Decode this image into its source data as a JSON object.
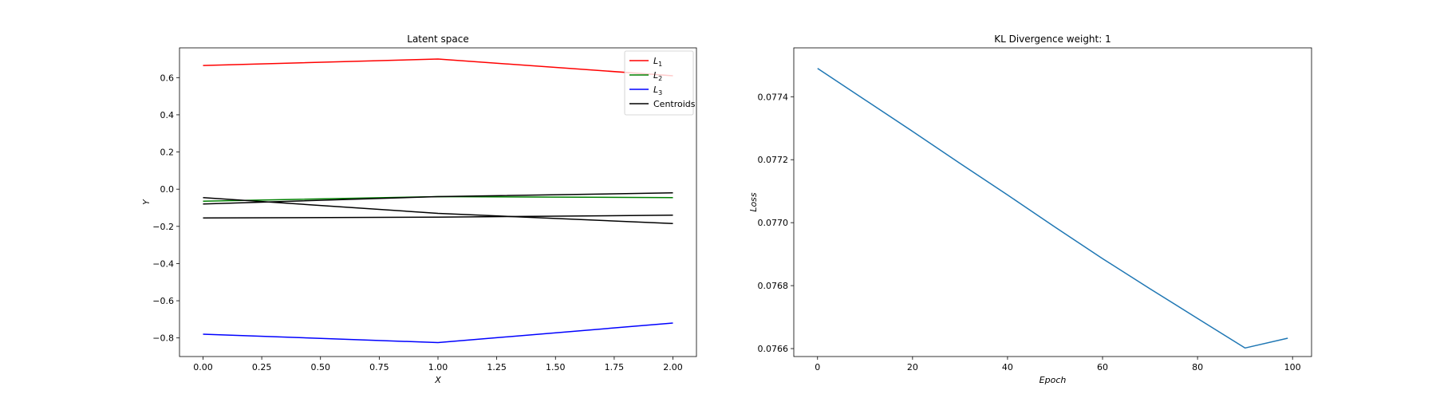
{
  "chart_data": [
    {
      "type": "line",
      "title": "Latent space",
      "xlabel": "X",
      "ylabel": "Y",
      "xlim": [
        -0.1,
        2.1
      ],
      "ylim": [
        -0.9,
        0.76
      ],
      "x_ticks": [
        0.0,
        0.25,
        0.5,
        0.75,
        1.0,
        1.25,
        1.5,
        1.75,
        2.0
      ],
      "x_tick_labels": [
        "0.00",
        "0.25",
        "0.50",
        "0.75",
        "1.00",
        "1.25",
        "1.50",
        "1.75",
        "2.00"
      ],
      "y_ticks": [
        -0.8,
        -0.6,
        -0.4,
        -0.2,
        0.0,
        0.2,
        0.4,
        0.6
      ],
      "y_tick_labels": [
        "−0.8",
        "−0.6",
        "−0.4",
        "−0.2",
        "0.0",
        "0.2",
        "0.4",
        "0.6"
      ],
      "grid": false,
      "legend_position": "top-right",
      "legend": [
        {
          "base": "L",
          "sub": "1",
          "color": "#ff0000"
        },
        {
          "base": "L",
          "sub": "2",
          "color": "#008000"
        },
        {
          "base": "L",
          "sub": "3",
          "color": "#0000ff"
        },
        {
          "base": "Centroids",
          "sub": "",
          "color": "#000000"
        }
      ],
      "series": [
        {
          "name": "L1",
          "color": "#ff0000",
          "x": [
            0,
            1,
            2
          ],
          "y": [
            0.665,
            0.7,
            0.61
          ]
        },
        {
          "name": "L2",
          "color": "#008000",
          "x": [
            0,
            1,
            2
          ],
          "y": [
            -0.065,
            -0.04,
            -0.045
          ]
        },
        {
          "name": "L3",
          "color": "#0000ff",
          "x": [
            0,
            1,
            2
          ],
          "y": [
            -0.78,
            -0.825,
            -0.72
          ]
        },
        {
          "name": "Centroids",
          "color": "#000000",
          "x": [
            0,
            1,
            2
          ],
          "y": [
            -0.045,
            -0.13,
            -0.185
          ]
        },
        {
          "color": "#000000",
          "x": [
            0,
            1,
            2
          ],
          "y": [
            -0.08,
            -0.04,
            -0.02
          ]
        },
        {
          "color": "#000000",
          "x": [
            0,
            1,
            2
          ],
          "y": [
            -0.155,
            -0.15,
            -0.14
          ]
        }
      ]
    },
    {
      "type": "line",
      "title": "KL Divergence weight: 1",
      "xlabel": "Epoch",
      "ylabel": "Loss",
      "xlim": [
        -5,
        104
      ],
      "ylim": [
        0.0765748,
        0.0775552
      ],
      "x_ticks": [
        0,
        20,
        40,
        60,
        80,
        100
      ],
      "x_tick_labels": [
        "0",
        "20",
        "40",
        "60",
        "80",
        "100"
      ],
      "y_ticks": [
        0.0766,
        0.0768,
        0.077,
        0.0772,
        0.0774
      ],
      "y_tick_labels": [
        "0.0766",
        "0.0768",
        "0.0770",
        "0.0772",
        "0.0774"
      ],
      "grid": false,
      "series": [
        {
          "color": "#1f77b4",
          "x": [
            0,
            10,
            20,
            30,
            40,
            50,
            60,
            70,
            80,
            90,
            99
          ],
          "y": [
            0.07749,
            0.07739,
            0.07729,
            0.077188,
            0.077088,
            0.076986,
            0.076886,
            0.07679,
            0.076696,
            0.076602,
            0.076633
          ]
        }
      ]
    }
  ]
}
